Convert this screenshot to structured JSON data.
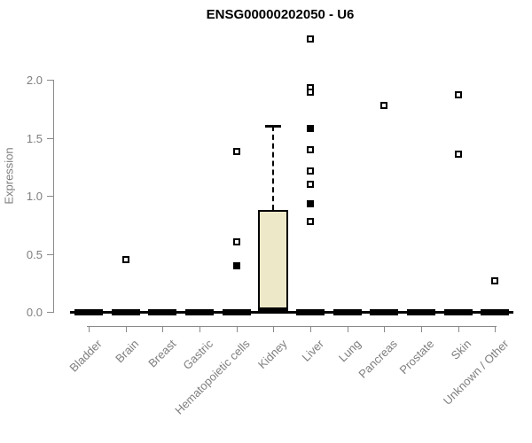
{
  "chart_data": {
    "type": "boxplot",
    "title": "ENSG00000202050 - U6",
    "xlabel": "",
    "ylabel": "Expression",
    "ylim": [
      0,
      2.4
    ],
    "ytick_values": [
      0,
      0.5,
      1.0,
      1.5,
      2.0
    ],
    "ytick_labels": [
      "0.0",
      "0.5",
      "1.0",
      "1.5",
      "2.0"
    ],
    "grid": false,
    "legend": "none",
    "colors": {
      "box_fill": "#ede8c8",
      "box_border": "#000000",
      "axis": "#8a8a8a",
      "tick_text": "#7e7e7e",
      "title_text": "#000000",
      "outlier_open_fill": "#ffffff",
      "outlier_solid_fill": "#000000"
    },
    "categories": [
      "Bladder",
      "Brain",
      "Breast",
      "Gastric",
      "Hematopoietic cells",
      "Kidney",
      "Liver",
      "Lung",
      "Pancreas",
      "Prostate",
      "Skin",
      "Unknown / Other"
    ],
    "boxes": [
      {
        "category": "Bladder",
        "q1": 0,
        "median": 0,
        "q3": 0,
        "whisker_low": 0,
        "whisker_high": 0,
        "outliers": []
      },
      {
        "category": "Brain",
        "q1": 0,
        "median": 0,
        "q3": 0,
        "whisker_low": 0,
        "whisker_high": 0,
        "outliers": [
          {
            "v": 0.45,
            "solid": false
          }
        ]
      },
      {
        "category": "Breast",
        "q1": 0,
        "median": 0,
        "q3": 0,
        "whisker_low": 0,
        "whisker_high": 0,
        "outliers": []
      },
      {
        "category": "Gastric",
        "q1": 0,
        "median": 0,
        "q3": 0,
        "whisker_low": 0,
        "whisker_high": 0,
        "outliers": []
      },
      {
        "category": "Hematopoietic cells",
        "q1": 0,
        "median": 0,
        "q3": 0,
        "whisker_low": 0,
        "whisker_high": 0,
        "outliers": [
          {
            "v": 1.38,
            "solid": false
          },
          {
            "v": 0.6,
            "solid": false
          },
          {
            "v": 0.4,
            "solid": true
          }
        ]
      },
      {
        "category": "Kidney",
        "q1": 0,
        "median": 0.01,
        "q3": 0.88,
        "whisker_low": 0,
        "whisker_high": 1.6,
        "outliers": []
      },
      {
        "category": "Liver",
        "q1": 0,
        "median": 0,
        "q3": 0,
        "whisker_low": 0,
        "whisker_high": 0,
        "outliers": [
          {
            "v": 2.35,
            "solid": false
          },
          {
            "v": 1.93,
            "solid": false
          },
          {
            "v": 1.89,
            "solid": false
          },
          {
            "v": 1.58,
            "solid": true
          },
          {
            "v": 1.4,
            "solid": false
          },
          {
            "v": 1.21,
            "solid": false
          },
          {
            "v": 1.1,
            "solid": false
          },
          {
            "v": 0.93,
            "solid": true
          },
          {
            "v": 0.78,
            "solid": false
          }
        ]
      },
      {
        "category": "Lung",
        "q1": 0,
        "median": 0,
        "q3": 0,
        "whisker_low": 0,
        "whisker_high": 0,
        "outliers": []
      },
      {
        "category": "Pancreas",
        "q1": 0,
        "median": 0,
        "q3": 0,
        "whisker_low": 0,
        "whisker_high": 0,
        "outliers": [
          {
            "v": 1.78,
            "solid": false
          }
        ]
      },
      {
        "category": "Prostate",
        "q1": 0,
        "median": 0,
        "q3": 0,
        "whisker_low": 0,
        "whisker_high": 0,
        "outliers": []
      },
      {
        "category": "Skin",
        "q1": 0,
        "median": 0,
        "q3": 0,
        "whisker_low": 0,
        "whisker_high": 0,
        "outliers": [
          {
            "v": 1.87,
            "solid": false
          },
          {
            "v": 1.36,
            "solid": false
          }
        ]
      },
      {
        "category": "Unknown / Other",
        "q1": 0,
        "median": 0,
        "q3": 0,
        "whisker_low": 0,
        "whisker_high": 0,
        "outliers": [
          {
            "v": 0.27,
            "solid": false
          }
        ]
      }
    ]
  }
}
